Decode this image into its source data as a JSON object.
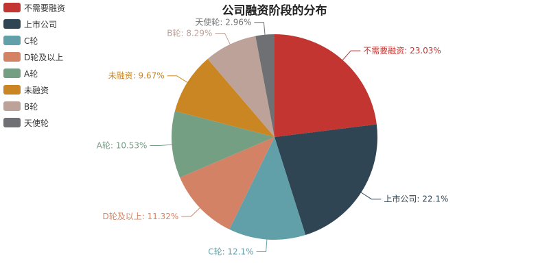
{
  "chart_data": {
    "type": "pie",
    "title": "公司融资阶段的分布",
    "legend_position": "top-left",
    "slices": [
      {
        "name": "不需要融资",
        "value": 23.03,
        "label": "不需要融资: 23.03%",
        "color": "#c23531"
      },
      {
        "name": "上市公司",
        "value": 22.1,
        "label": "上市公司: 22.1%",
        "color": "#2f4554"
      },
      {
        "name": "C轮",
        "value": 12.1,
        "label": "C轮: 12.1%",
        "color": "#61a0a8"
      },
      {
        "name": "D轮及以上",
        "value": 11.32,
        "label": "D轮及以上: 11.32%",
        "color": "#d48265"
      },
      {
        "name": "A轮",
        "value": 10.53,
        "label": "A轮: 10.53%",
        "color": "#749f83"
      },
      {
        "name": "未融资",
        "value": 9.67,
        "label": "未融资: 9.67%",
        "color": "#ca8622"
      },
      {
        "name": "B轮",
        "value": 8.29,
        "label": "B轮: 8.29%",
        "color": "#bda29a"
      },
      {
        "name": "天使轮",
        "value": 2.96,
        "label": "天使轮: 2.96%",
        "color": "#6e7074"
      }
    ]
  }
}
